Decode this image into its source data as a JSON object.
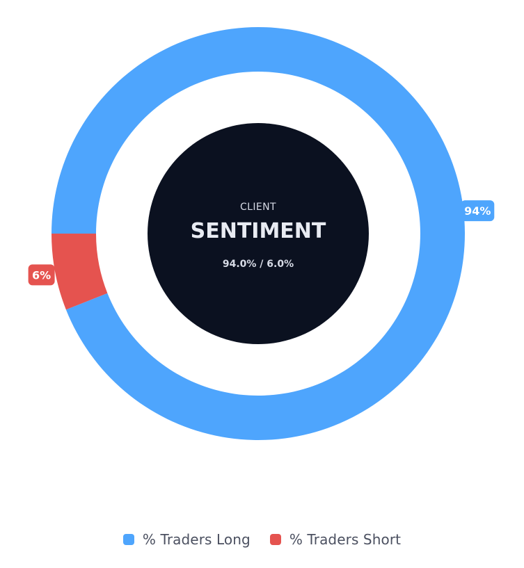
{
  "chart_data": {
    "type": "pie",
    "variant": "donut",
    "series": [
      {
        "name": "% Traders Long",
        "value": 94,
        "label": "94%",
        "color": "#4ea5fd"
      },
      {
        "name": "% Traders Short",
        "value": 6,
        "label": "6%",
        "color": "#e5534f"
      }
    ],
    "legend_position": "bottom"
  },
  "center": {
    "kicker": "CLIENT",
    "title": "SENTIMENT",
    "ratio": "94.0% / 6.0%",
    "background": "#0b1120"
  }
}
